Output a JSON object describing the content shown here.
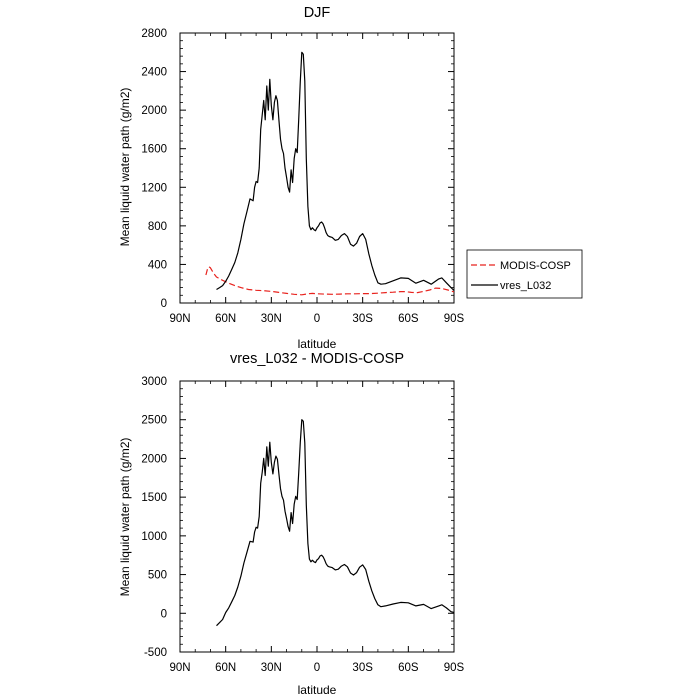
{
  "chart_data": [
    {
      "type": "line",
      "title": "DJF",
      "xlabel": "latitude",
      "ylabel": "Mean liquid water path (g/m2)",
      "xlim": [
        -90,
        90
      ],
      "ylim": [
        0,
        2800
      ],
      "x_tick_values": [
        -90,
        -60,
        -30,
        0,
        30,
        60,
        90
      ],
      "x_tick_labels": [
        "90N",
        "60N",
        "30N",
        "0",
        "30S",
        "60S",
        "90S"
      ],
      "y_ticks": [
        0,
        400,
        800,
        1200,
        1600,
        2000,
        2400,
        2800
      ],
      "y_tick_labels": [
        "0",
        "400",
        "800",
        "1200",
        "1600",
        "2000",
        "2400",
        "2800"
      ],
      "legend_position": "right",
      "series": [
        {
          "name": "MODIS-COSP",
          "color": "#e8231e",
          "dash": "dashed",
          "x": [
            -73,
            -72,
            -71,
            -70,
            -68,
            -66,
            -62,
            -58,
            -54,
            -50,
            -45,
            -40,
            -35,
            -30,
            -25,
            -20,
            -15,
            -10,
            -6,
            -3,
            0,
            5,
            10,
            15,
            20,
            25,
            30,
            35,
            40,
            45,
            50,
            55,
            58,
            62,
            66,
            70,
            74,
            78,
            82,
            86,
            90
          ],
          "y": [
            290,
            350,
            375,
            365,
            310,
            270,
            235,
            205,
            180,
            160,
            140,
            132,
            128,
            120,
            110,
            100,
            90,
            85,
            95,
            100,
            95,
            92,
            90,
            92,
            95,
            95,
            97,
            98,
            102,
            108,
            112,
            118,
            118,
            110,
            108,
            120,
            135,
            155,
            150,
            135,
            115
          ]
        },
        {
          "name": "vres_L032",
          "color": "#000000",
          "dash": "solid",
          "x": [
            -66,
            -64,
            -62,
            -60,
            -58,
            -56,
            -54,
            -52,
            -50,
            -48,
            -46,
            -44,
            -42,
            -41,
            -40,
            -39,
            -38,
            -37,
            -36,
            -35,
            -34,
            -33,
            -32,
            -31,
            -30,
            -29,
            -28,
            -27,
            -26,
            -25,
            -24,
            -23,
            -22,
            -21,
            -20,
            -19,
            -18,
            -17,
            -16,
            -15,
            -14,
            -13,
            -12,
            -11,
            -10,
            -9,
            -8,
            -7,
            -6,
            -5,
            -4,
            -3,
            -2,
            -1,
            0,
            1,
            2,
            3,
            4,
            5,
            6,
            7,
            8,
            10,
            12,
            14,
            16,
            18,
            20,
            22,
            24,
            26,
            28,
            30,
            32,
            34,
            36,
            38,
            40,
            42,
            45,
            50,
            55,
            60,
            65,
            70,
            75,
            80,
            82,
            85,
            88,
            90
          ],
          "y": [
            140,
            160,
            180,
            225,
            280,
            350,
            420,
            520,
            660,
            820,
            950,
            1080,
            1060,
            1200,
            1260,
            1250,
            1400,
            1800,
            1950,
            2100,
            1900,
            2250,
            2000,
            2320,
            2050,
            1900,
            2080,
            2150,
            2100,
            1900,
            1700,
            1600,
            1550,
            1400,
            1300,
            1200,
            1150,
            1380,
            1250,
            1500,
            1600,
            1560,
            1900,
            2300,
            2600,
            2580,
            2300,
            1500,
            1000,
            800,
            760,
            780,
            760,
            750,
            780,
            800,
            830,
            840,
            820,
            780,
            730,
            700,
            690,
            680,
            650,
            660,
            700,
            720,
            690,
            610,
            590,
            620,
            690,
            720,
            660,
            510,
            390,
            290,
            210,
            195,
            200,
            230,
            260,
            255,
            205,
            235,
            195,
            250,
            260,
            210,
            160,
            130
          ]
        }
      ]
    },
    {
      "type": "line",
      "title": "vres_L032 - MODIS-COSP",
      "xlabel": "latitude",
      "ylabel": "Mean liquid water path (g/m2)",
      "xlim": [
        -90,
        90
      ],
      "ylim": [
        -500,
        3000
      ],
      "x_tick_values": [
        -90,
        -60,
        -30,
        0,
        30,
        60,
        90
      ],
      "x_tick_labels": [
        "90N",
        "60N",
        "30N",
        "0",
        "30S",
        "60S",
        "90S"
      ],
      "y_ticks": [
        -500,
        0,
        500,
        1000,
        1500,
        2000,
        2500,
        3000
      ],
      "y_tick_labels": [
        "-500",
        "0",
        "500",
        "1000",
        "1500",
        "2000",
        "2500",
        "3000"
      ],
      "series": [
        {
          "name": "vres_L032 - MODIS-COSP",
          "color": "#000000",
          "dash": "solid",
          "x": [
            -66,
            -64,
            -62,
            -60,
            -58,
            -56,
            -54,
            -52,
            -50,
            -48,
            -46,
            -44,
            -42,
            -41,
            -40,
            -39,
            -38,
            -37,
            -36,
            -35,
            -34,
            -33,
            -32,
            -31,
            -30,
            -29,
            -28,
            -27,
            -26,
            -25,
            -24,
            -23,
            -22,
            -21,
            -20,
            -19,
            -18,
            -17,
            -16,
            -15,
            -14,
            -13,
            -12,
            -11,
            -10,
            -9,
            -8,
            -7,
            -6,
            -5,
            -4,
            -3,
            -2,
            -1,
            0,
            1,
            2,
            3,
            4,
            5,
            6,
            7,
            8,
            10,
            12,
            14,
            16,
            18,
            20,
            22,
            24,
            26,
            28,
            30,
            32,
            34,
            36,
            38,
            40,
            42,
            45,
            50,
            55,
            60,
            65,
            70,
            75,
            80,
            82,
            85,
            88,
            90
          ],
          "y": [
            -160,
            -120,
            -80,
            10,
            70,
            150,
            230,
            340,
            480,
            650,
            790,
            930,
            920,
            1050,
            1110,
            1100,
            1250,
            1680,
            1820,
            2000,
            1780,
            2150,
            1900,
            2210,
            1950,
            1800,
            1950,
            2030,
            1990,
            1800,
            1610,
            1510,
            1460,
            1320,
            1220,
            1120,
            1060,
            1300,
            1160,
            1410,
            1510,
            1470,
            1810,
            2210,
            2500,
            2480,
            2200,
            1400,
            900,
            700,
            665,
            685,
            665,
            655,
            690,
            705,
            740,
            750,
            730,
            690,
            640,
            610,
            600,
            590,
            560,
            570,
            610,
            630,
            600,
            520,
            495,
            525,
            595,
            625,
            565,
            415,
            290,
            190,
            110,
            85,
            95,
            120,
            140,
            135,
            95,
            115,
            60,
            95,
            110,
            70,
            20,
            10
          ]
        }
      ]
    }
  ]
}
